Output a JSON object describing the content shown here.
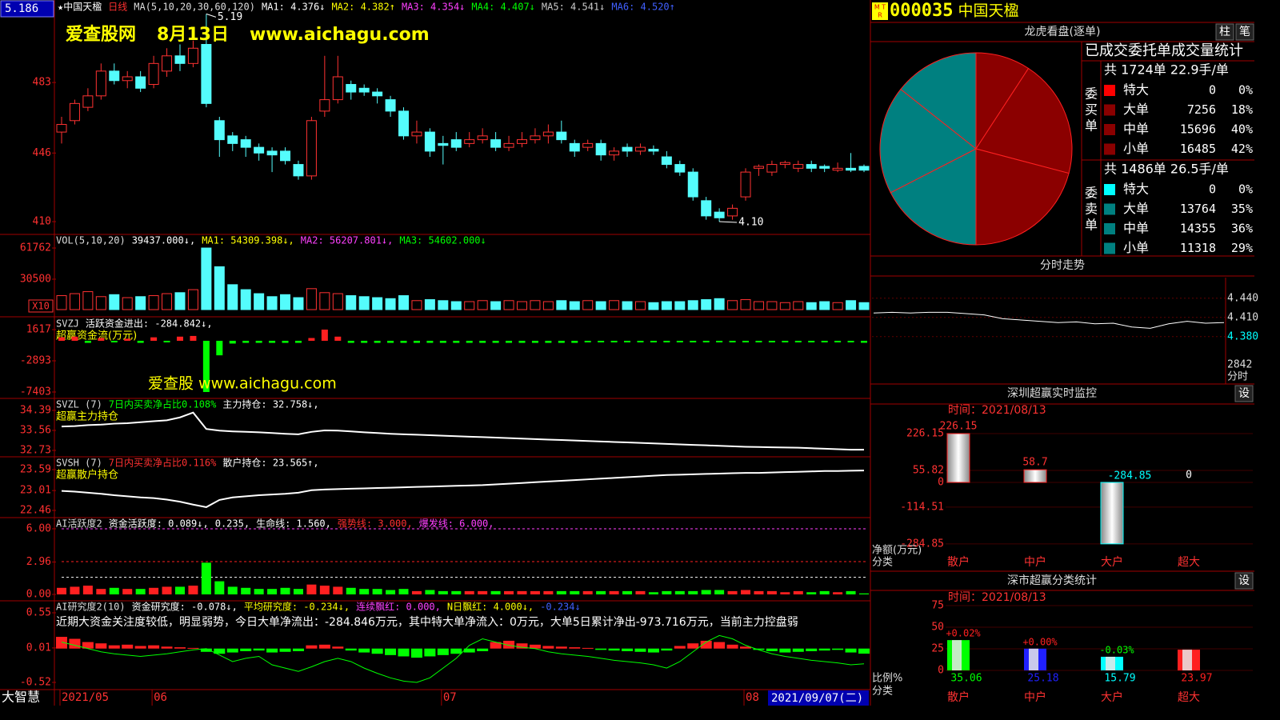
{
  "header": {
    "cursor_value": "5.186",
    "title_items": [
      {
        "text": "★中国天楹",
        "color": "#ffffff"
      },
      {
        "text": "日线",
        "color": "#ff3030"
      },
      {
        "text": "MA(5,10,20,30,60,120)",
        "color": "#dddddd"
      },
      {
        "text": "MA1: 4.376↓",
        "color": "#ffffff"
      },
      {
        "text": "MA2: 4.382↑",
        "color": "#ffff00"
      },
      {
        "text": "MA3: 4.354↓",
        "color": "#ff40ff"
      },
      {
        "text": "MA4: 4.407↓",
        "color": "#00ff00"
      },
      {
        "text": "MA5: 4.541↓",
        "color": "#cccccc"
      },
      {
        "text": "MA6: 4.520↑",
        "color": "#4060ff"
      }
    ],
    "watermark": [
      "爱查股网",
      "8月13日",
      "www.aichagu.com"
    ],
    "watermark2": "爱查股 www.aichagu.com"
  },
  "price": {
    "ylim": [
      4.033,
      5.263
    ],
    "yticks": [
      {
        "value": 4.83,
        "label": "483"
      },
      {
        "value": 4.46,
        "label": "446"
      },
      {
        "value": 4.1,
        "label": "410"
      }
    ],
    "high_label": "5.19",
    "low_label": "4.10",
    "ohlc": [
      [
        4.57,
        4.65,
        4.51,
        4.61
      ],
      [
        4.63,
        4.74,
        4.61,
        4.72
      ],
      [
        4.7,
        4.8,
        4.68,
        4.76
      ],
      [
        4.76,
        4.93,
        4.74,
        4.89
      ],
      [
        4.89,
        4.93,
        4.82,
        4.84
      ],
      [
        4.84,
        4.89,
        4.8,
        4.86
      ],
      [
        4.86,
        4.89,
        4.78,
        4.8
      ],
      [
        4.82,
        4.97,
        4.8,
        4.93
      ],
      [
        4.89,
        5.01,
        4.86,
        4.97
      ],
      [
        4.97,
        5.03,
        4.89,
        4.93
      ],
      [
        4.93,
        5.05,
        4.91,
        5.01
      ],
      [
        5.03,
        5.19,
        4.7,
        4.72
      ],
      [
        4.63,
        4.65,
        4.44,
        4.53
      ],
      [
        4.55,
        4.57,
        4.47,
        4.51
      ],
      [
        4.53,
        4.55,
        4.44,
        4.49
      ],
      [
        4.49,
        4.51,
        4.42,
        4.46
      ],
      [
        4.47,
        4.49,
        4.36,
        4.45
      ],
      [
        4.47,
        4.49,
        4.4,
        4.42
      ],
      [
        4.4,
        4.42,
        4.32,
        4.34
      ],
      [
        4.34,
        4.65,
        4.32,
        4.63
      ],
      [
        4.68,
        4.97,
        4.65,
        4.74
      ],
      [
        4.74,
        4.97,
        4.72,
        4.86
      ],
      [
        4.82,
        4.84,
        4.74,
        4.78
      ],
      [
        4.8,
        4.82,
        4.76,
        4.78
      ],
      [
        4.78,
        4.8,
        4.72,
        4.76
      ],
      [
        4.74,
        4.76,
        4.65,
        4.68
      ],
      [
        4.68,
        4.7,
        4.53,
        4.55
      ],
      [
        4.55,
        4.63,
        4.51,
        4.57
      ],
      [
        4.57,
        4.59,
        4.44,
        4.47
      ],
      [
        4.51,
        4.55,
        4.4,
        4.5
      ],
      [
        4.53,
        4.57,
        4.47,
        4.49
      ],
      [
        4.51,
        4.57,
        4.49,
        4.53
      ],
      [
        4.53,
        4.59,
        4.51,
        4.55
      ],
      [
        4.53,
        4.57,
        4.47,
        4.49
      ],
      [
        4.49,
        4.55,
        4.47,
        4.51
      ],
      [
        4.51,
        4.57,
        4.49,
        4.53
      ],
      [
        4.53,
        4.59,
        4.51,
        4.55
      ],
      [
        4.55,
        4.61,
        4.51,
        4.57
      ],
      [
        4.57,
        4.63,
        4.51,
        4.53
      ],
      [
        4.51,
        4.53,
        4.44,
        4.47
      ],
      [
        4.49,
        4.53,
        4.47,
        4.51
      ],
      [
        4.51,
        4.53,
        4.42,
        4.45
      ],
      [
        4.45,
        4.49,
        4.42,
        4.47
      ],
      [
        4.49,
        4.51,
        4.44,
        4.47
      ],
      [
        4.47,
        4.51,
        4.45,
        4.49
      ],
      [
        4.48,
        4.5,
        4.45,
        4.47
      ],
      [
        4.44,
        4.47,
        4.38,
        4.4
      ],
      [
        4.4,
        4.42,
        4.34,
        4.36
      ],
      [
        4.36,
        4.38,
        4.21,
        4.23
      ],
      [
        4.21,
        4.23,
        4.11,
        4.13
      ],
      [
        4.15,
        4.17,
        4.1,
        4.12
      ],
      [
        4.13,
        4.19,
        4.11,
        4.17
      ],
      [
        4.23,
        4.38,
        4.21,
        4.36
      ],
      [
        4.38,
        4.4,
        4.34,
        4.39
      ],
      [
        4.36,
        4.42,
        4.34,
        4.4
      ],
      [
        4.4,
        4.42,
        4.38,
        4.41
      ],
      [
        4.38,
        4.42,
        4.36,
        4.4
      ],
      [
        4.4,
        4.42,
        4.36,
        4.38
      ],
      [
        4.39,
        4.4,
        4.36,
        4.38
      ],
      [
        4.37,
        4.41,
        4.36,
        4.38
      ],
      [
        4.38,
        4.46,
        4.36,
        4.37
      ],
      [
        4.39,
        4.4,
        4.36,
        4.37
      ]
    ]
  },
  "volume": {
    "header": [
      {
        "text": "VOL(5,10,20)",
        "color": "#dddddd"
      },
      {
        "text": "39437.000↓,",
        "color": "#ffffff"
      },
      {
        "text": "MA1: 54309.398↓,",
        "color": "#ffff00"
      },
      {
        "text": "MA2: 56207.801↓,",
        "color": "#ff40ff"
      },
      {
        "text": "MA3: 54602.000↓",
        "color": "#00ff00"
      }
    ],
    "unit": "X10",
    "ylim": [
      0,
      69800
    ],
    "yticks": [
      61762,
      30500
    ],
    "values": [
      14000,
      16000,
      18000,
      13000,
      15000,
      12000,
      13000,
      14000,
      16000,
      17000,
      20000,
      61762,
      43000,
      25000,
      20000,
      16000,
      13000,
      15000,
      12000,
      21000,
      17000,
      16000,
      14000,
      13000,
      12000,
      11000,
      14000,
      9000,
      10000,
      9000,
      8000,
      8000,
      9000,
      8000,
      9000,
      8000,
      9000,
      8000,
      9000,
      8000,
      9000,
      8000,
      9000,
      8000,
      8000,
      7000,
      8000,
      8000,
      9000,
      10000,
      11000,
      9000,
      10000,
      8000,
      8000,
      7000,
      8000,
      7000,
      8000,
      7000,
      9000,
      7000
    ]
  },
  "svzj": {
    "header": [
      {
        "text": "SVZJ",
        "color": "#dddddd"
      },
      {
        "text": "活跃资金进出: -284.842↓,",
        "color": "#ffffff"
      }
    ],
    "subtitle": "超赢资金流(万元)",
    "ylim": [
      -7865,
      3004
    ],
    "yticks": [
      1617,
      -2893,
      -7403
    ],
    "values": [
      500,
      600,
      -300,
      400,
      -200,
      300,
      -300,
      500,
      -200,
      600,
      700,
      -7403,
      -2100,
      -400,
      -300,
      -300,
      -300,
      -300,
      -300,
      400,
      1617,
      600,
      -300,
      -300,
      -300,
      -300,
      -300,
      -300,
      -300,
      -300,
      -300,
      -300,
      -300,
      -300,
      -300,
      -300,
      -300,
      -300,
      -300,
      -300,
      -200,
      -200,
      -200,
      -200,
      -200,
      -200,
      -200,
      -200,
      -200,
      -200,
      -200,
      -200,
      -200,
      -200,
      -200,
      -200,
      -200,
      -200,
      -200,
      -200,
      -200,
      -284.842
    ]
  },
  "svzl": {
    "header": [
      {
        "text": "SVZL (7)",
        "color": "#dddddd"
      },
      {
        "text": "7日内买卖净占比0.108%",
        "color": "#00ff00"
      },
      {
        "text": "主力持仓: 32.758↓,",
        "color": "#ffffff"
      }
    ],
    "subtitle": "超赢主力持仓",
    "ylim": [
      32.564,
      34.755
    ],
    "yticks": [
      34.39,
      33.56,
      32.73
    ],
    "values": [
      33.72,
      33.74,
      33.78,
      33.8,
      33.84,
      33.86,
      33.9,
      33.94,
      33.98,
      34.1,
      34.3,
      33.62,
      33.55,
      33.52,
      33.5,
      33.48,
      33.45,
      33.42,
      33.4,
      33.5,
      33.56,
      33.55,
      33.52,
      33.48,
      33.45,
      33.42,
      33.4,
      33.38,
      33.36,
      33.34,
      33.32,
      33.3,
      33.28,
      33.26,
      33.24,
      33.22,
      33.2,
      33.18,
      33.16,
      33.14,
      33.12,
      33.1,
      33.08,
      33.06,
      33.04,
      33.02,
      33.0,
      32.98,
      32.96,
      32.94,
      32.92,
      32.9,
      32.88,
      32.87,
      32.86,
      32.85,
      32.84,
      32.82,
      32.8,
      32.78,
      32.76,
      32.758
    ]
  },
  "svsh": {
    "header": [
      {
        "text": "SVSH (7)",
        "color": "#dddddd"
      },
      {
        "text": "7日内买卖净占比0.116%",
        "color": "#ff3030"
      },
      {
        "text": "散户持仓: 23.565↑,",
        "color": "#ffffff"
      }
    ],
    "subtitle": "超赢散户持仓",
    "ylim": [
      22.327,
      23.856
    ],
    "yticks": [
      23.59,
      23.01,
      22.46
    ],
    "values": [
      23.0,
      22.98,
      22.95,
      22.92,
      22.88,
      22.85,
      22.82,
      22.8,
      22.76,
      22.7,
      22.62,
      22.55,
      22.75,
      22.82,
      22.85,
      22.88,
      22.9,
      22.92,
      22.95,
      23.02,
      23.04,
      23.05,
      23.06,
      23.07,
      23.08,
      23.09,
      23.1,
      23.11,
      23.12,
      23.13,
      23.14,
      23.15,
      23.16,
      23.18,
      23.2,
      23.22,
      23.24,
      23.26,
      23.28,
      23.3,
      23.32,
      23.34,
      23.36,
      23.38,
      23.4,
      23.42,
      23.44,
      23.45,
      23.46,
      23.47,
      23.48,
      23.49,
      23.5,
      23.5,
      23.51,
      23.52,
      23.53,
      23.54,
      23.55,
      23.55,
      23.56,
      23.565
    ]
  },
  "activity": {
    "header": [
      {
        "text": "AI活跃度2",
        "color": "#dddddd"
      },
      {
        "text": "资金活跃度: 0.089↓,",
        "color": "#ffffff"
      },
      {
        "text": "0.235,",
        "color": "#ffffff"
      },
      {
        "text": "生命线: 1.560,",
        "color": "#ffffff"
      },
      {
        "text": "强势线: 3.000,",
        "color": "#ff3030"
      },
      {
        "text": "爆发线: 6.000,",
        "color": "#ff40ff"
      }
    ],
    "levels": {
      "life": 1.56,
      "strong": 3,
      "burst": 6
    },
    "ylim": [
      -0.22,
      6.73
    ],
    "yticks": [
      {
        "value": 6,
        "label": "6.00"
      },
      2.96,
      {
        "value": 0,
        "label": "0.00"
      }
    ],
    "values": [
      0.6,
      0.7,
      0.8,
      0.5,
      0.6,
      0.5,
      0.5,
      0.6,
      0.7,
      0.7,
      0.8,
      2.9,
      1.2,
      0.7,
      0.6,
      0.5,
      0.5,
      0.6,
      0.5,
      0.9,
      0.8,
      0.7,
      0.6,
      0.5,
      0.5,
      0.4,
      0.5,
      0.3,
      0.4,
      0.3,
      0.3,
      0.3,
      0.3,
      0.3,
      0.3,
      0.3,
      0.3,
      0.3,
      0.3,
      0.3,
      0.3,
      0.3,
      0.3,
      0.3,
      0.3,
      0.2,
      0.3,
      0.3,
      0.3,
      0.4,
      0.4,
      0.3,
      0.4,
      0.3,
      0.3,
      0.2,
      0.3,
      0.2,
      0.3,
      0.2,
      0.3,
      0.089
    ]
  },
  "research": {
    "header": [
      {
        "text": "AI研究度2(10)",
        "color": "#dddddd"
      },
      {
        "text": "资金研究度: -0.078↓,",
        "color": "#ffffff"
      },
      {
        "text": "平均研究度: -0.234↓,",
        "color": "#ffff00"
      },
      {
        "text": "连续飘红: 0.000,",
        "color": "#ff40ff"
      },
      {
        "text": "N日飘红: 4.000↓,",
        "color": "#ffff00"
      },
      {
        "text": "-0.234↓",
        "color": "#4060ff"
      }
    ],
    "comment": "近期大资金关注度较低，明显弱势，今日大单净流出：-284.846万元，其中特大单净流入：0万元，大单5日累计净出-973.716万元，当前主力控盘弱",
    "ylim": [
      -0.606,
      0.685
    ],
    "yticks": [
      0.55,
      0.01,
      -0.52
    ],
    "values": [
      0.18,
      0.15,
      0.1,
      0.08,
      0.05,
      0.06,
      0.04,
      0.05,
      0.03,
      0.02,
      0.01,
      -0.05,
      -0.08,
      -0.06,
      -0.04,
      -0.03,
      -0.06,
      -0.05,
      -0.04,
      0.05,
      0.06,
      0.03,
      -0.03,
      -0.06,
      -0.08,
      -0.1,
      -0.12,
      -0.14,
      -0.12,
      -0.1,
      -0.08,
      -0.06,
      -0.04,
      0.1,
      0.12,
      0.08,
      0.06,
      0.04,
      0.03,
      0.02,
      0.01,
      -0.02,
      -0.03,
      -0.04,
      -0.05,
      -0.06,
      -0.03,
      0.04,
      0.08,
      0.12,
      0.1,
      0.06,
      0.03,
      -0.02,
      -0.04,
      -0.06,
      -0.05,
      -0.04,
      -0.03,
      -0.02,
      -0.06,
      -0.078
    ],
    "line": [
      0.1,
      0.05,
      0.0,
      -0.05,
      -0.08,
      -0.1,
      -0.12,
      -0.1,
      -0.08,
      -0.05,
      -0.02,
      0.0,
      -0.1,
      -0.2,
      -0.15,
      -0.12,
      -0.25,
      -0.3,
      -0.35,
      -0.28,
      -0.2,
      -0.15,
      -0.2,
      -0.3,
      -0.38,
      -0.45,
      -0.5,
      -0.52,
      -0.45,
      -0.3,
      -0.15,
      0.05,
      0.15,
      0.1,
      0.05,
      0.02,
      0.0,
      -0.05,
      -0.08,
      -0.1,
      -0.12,
      -0.15,
      -0.18,
      -0.2,
      -0.22,
      -0.25,
      -0.3,
      -0.2,
      -0.05,
      0.1,
      0.2,
      0.15,
      0.05,
      -0.02,
      -0.08,
      -0.12,
      -0.15,
      -0.18,
      -0.2,
      -0.22,
      -0.25,
      -0.234
    ]
  },
  "xaxis": {
    "software": "大智慧",
    "month_labels": [
      {
        "text": "2021/05",
        "index": 0
      },
      {
        "text": "06",
        "index": 7
      },
      {
        "text": "07",
        "index": 29
      },
      {
        "text": "08",
        "index": 52
      }
    ],
    "cursor_date": "2021/09/07(二)"
  },
  "stock": {
    "code": "000035",
    "name": "中国天楹"
  },
  "orders": {
    "title": "龙虎看盘(逐单)",
    "buttons": [
      "柱",
      "笔"
    ],
    "subtitle": "已成交委托单成交量统计",
    "buy": {
      "label": [
        "委",
        "买",
        "单"
      ],
      "summary": "共 1724单 22.9手/单",
      "rows": [
        {
          "name": "特大",
          "value": 0,
          "pct": "0%",
          "color": "#ff0000"
        },
        {
          "name": "大单",
          "value": 7256,
          "pct": "18%",
          "color": "#8b0000"
        },
        {
          "name": "中单",
          "value": 15696,
          "pct": "40%",
          "color": "#8b0000"
        },
        {
          "name": "小单",
          "value": 16485,
          "pct": "42%",
          "color": "#8b0000"
        }
      ]
    },
    "sell": {
      "label": [
        "委",
        "卖",
        "单"
      ],
      "summary": "共 1486单 26.5手/单",
      "rows": [
        {
          "name": "特大",
          "value": 0,
          "pct": "0%",
          "color": "#00ffff"
        },
        {
          "name": "大单",
          "value": 13764,
          "pct": "35%",
          "color": "#008080"
        },
        {
          "name": "中单",
          "value": 14355,
          "pct": "36%",
          "color": "#008080"
        },
        {
          "name": "小单",
          "value": 11318,
          "pct": "29%",
          "color": "#008080"
        }
      ]
    }
  },
  "intraday": {
    "title": "分时走势",
    "ylim": [
      4.356,
      4.471
    ],
    "yticks": [
      {
        "value": 4.44,
        "label": "4.440"
      },
      {
        "value": 4.41,
        "label": "4.410"
      },
      {
        "value": 4.38,
        "label": "4.380"
      }
    ],
    "volume_label": "2842",
    "footer": "分时",
    "values": [
      4.417,
      4.418,
      4.417,
      4.418,
      4.418,
      4.416,
      4.414,
      4.408,
      4.406,
      4.404,
      4.402,
      4.403,
      4.4,
      4.401,
      4.395,
      4.393,
      4.4,
      4.404,
      4.401,
      4.402
    ]
  },
  "categories": [
    "散户",
    "中户",
    "大户",
    "超大"
  ],
  "monitor": {
    "title": "深圳超赢实时监控",
    "button": "设",
    "time": "时间：2021/08/13",
    "ylim": [
      -315.1,
      270.6
    ],
    "yticks": [
      226.15,
      55.82,
      0,
      -114.51,
      -284.85
    ],
    "values": [
      226.15,
      58.7,
      -284.85,
      0
    ],
    "y_label": "净额(万元)",
    "x_label": "分类"
  },
  "class_stats": {
    "title": "深市超赢分类统计",
    "button": "设",
    "time": "时间：2021/08/13",
    "ylim": [
      -1.85,
      81.5
    ],
    "yticks": [
      75,
      50,
      25,
      0
    ],
    "values": [
      35.06,
      25.18,
      15.79,
      23.97
    ],
    "changes": [
      "+0.02%",
      "+0.00%",
      "-0.03%",
      null
    ],
    "colors": [
      "#00ff00",
      "#2020ff",
      "#00ffff",
      "#ff2020"
    ],
    "y_label": "比例%",
    "x_label": "分类"
  }
}
